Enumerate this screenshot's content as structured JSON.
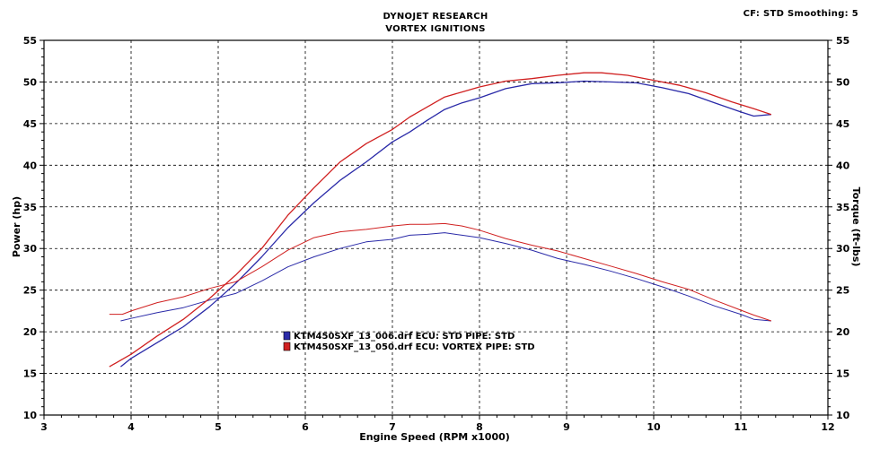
{
  "header": {
    "title_line1": "DYNOJET RESEARCH",
    "title_line2": "VORTEX IGNITIONS",
    "cf_info": "CF: STD  Smoothing: 5"
  },
  "colors": {
    "series_std": "#2a2aa8",
    "series_vortex": "#d02020",
    "grid": "#000000"
  },
  "chart_data": {
    "type": "line",
    "title": "DYNOJET RESEARCH",
    "subtitle": "VORTEX IGNITIONS",
    "xlabel": "Engine Speed (RPM x1000)",
    "ylabel": "Power (hp)",
    "ylabel_right": "Torque (ft-lbs)",
    "xlim": [
      3,
      12
    ],
    "ylim": [
      10,
      55
    ],
    "x_ticks": [
      3,
      4,
      5,
      6,
      7,
      8,
      9,
      10,
      11,
      12
    ],
    "y_ticks": [
      10,
      15,
      20,
      25,
      30,
      35,
      40,
      45,
      50,
      55
    ],
    "grid": true,
    "legend_position": "lower-center",
    "series": [
      {
        "name": "KTM450SXF_13_006.drf ECU: STD  PIPE: STD",
        "metric": "power",
        "color": "#2a2aa8",
        "x": [
          3.88,
          4.0,
          4.3,
          4.6,
          4.9,
          5.2,
          5.5,
          5.8,
          6.1,
          6.4,
          6.7,
          7.0,
          7.2,
          7.4,
          7.6,
          7.8,
          8.0,
          8.3,
          8.6,
          8.9,
          9.2,
          9.5,
          9.8,
          10.1,
          10.4,
          10.7,
          11.0,
          11.15,
          11.35
        ],
        "y": [
          15.8,
          16.8,
          18.7,
          20.6,
          23.0,
          25.8,
          29.0,
          32.5,
          35.5,
          38.2,
          40.4,
          42.8,
          44.0,
          45.4,
          46.7,
          47.5,
          48.1,
          49.2,
          49.8,
          49.9,
          50.1,
          50.0,
          49.9,
          49.3,
          48.6,
          47.5,
          46.4,
          45.9,
          46.1
        ]
      },
      {
        "name": "KTM450SXF_13_006.drf ECU: STD  PIPE: STD",
        "metric": "torque",
        "color": "#2a2aa8",
        "x": [
          3.88,
          4.0,
          4.3,
          4.6,
          4.9,
          5.2,
          5.5,
          5.8,
          6.1,
          6.4,
          6.7,
          7.0,
          7.2,
          7.4,
          7.6,
          7.8,
          8.0,
          8.3,
          8.6,
          8.9,
          9.2,
          9.5,
          9.8,
          10.1,
          10.4,
          10.7,
          11.0,
          11.15,
          11.35
        ],
        "y": [
          21.3,
          21.6,
          22.3,
          22.9,
          23.8,
          24.6,
          26.1,
          27.8,
          29.0,
          30.0,
          30.8,
          31.1,
          31.6,
          31.7,
          31.9,
          31.6,
          31.3,
          30.6,
          29.8,
          28.8,
          28.1,
          27.3,
          26.4,
          25.4,
          24.3,
          23.1,
          22.1,
          21.5,
          21.3
        ]
      },
      {
        "name": "KTM450SXF_13_050.drf ECU: VORTEX  PIPE: STD",
        "metric": "power",
        "color": "#d02020",
        "x": [
          3.75,
          4.0,
          4.3,
          4.6,
          4.9,
          5.2,
          5.5,
          5.8,
          6.1,
          6.4,
          6.7,
          7.0,
          7.2,
          7.4,
          7.6,
          7.8,
          8.0,
          8.3,
          8.6,
          8.9,
          9.2,
          9.4,
          9.7,
          10.0,
          10.3,
          10.6,
          10.9,
          11.15,
          11.35
        ],
        "y": [
          15.8,
          17.3,
          19.5,
          21.5,
          24.0,
          26.8,
          30.0,
          34.0,
          37.3,
          40.4,
          42.6,
          44.3,
          45.8,
          47.0,
          48.2,
          48.8,
          49.4,
          50.1,
          50.4,
          50.8,
          51.1,
          51.1,
          50.8,
          50.2,
          49.6,
          48.7,
          47.6,
          46.8,
          46.1
        ]
      },
      {
        "name": "KTM450SXF_13_050.drf ECU: VORTEX  PIPE: STD",
        "metric": "torque",
        "color": "#d02020",
        "x": [
          3.75,
          3.9,
          4.0,
          4.3,
          4.6,
          4.9,
          5.2,
          5.5,
          5.8,
          6.1,
          6.4,
          6.7,
          7.0,
          7.2,
          7.4,
          7.6,
          7.8,
          8.0,
          8.3,
          8.6,
          8.9,
          9.2,
          9.5,
          9.8,
          10.1,
          10.4,
          10.7,
          11.0,
          11.15,
          11.35
        ],
        "y": [
          22.1,
          22.1,
          22.5,
          23.5,
          24.2,
          25.2,
          26.0,
          27.8,
          29.8,
          31.3,
          32.0,
          32.3,
          32.7,
          32.9,
          32.9,
          33.0,
          32.7,
          32.2,
          31.2,
          30.4,
          29.7,
          28.8,
          27.9,
          27.0,
          26.0,
          25.1,
          23.8,
          22.6,
          22.0,
          21.3
        ]
      }
    ],
    "legend": [
      {
        "label": "KTM450SXF_13_006.drf ECU: STD  PIPE: STD",
        "color": "#2a2aa8"
      },
      {
        "label": "KTM450SXF_13_050.drf ECU: VORTEX  PIPE: STD",
        "color": "#d02020"
      }
    ]
  }
}
